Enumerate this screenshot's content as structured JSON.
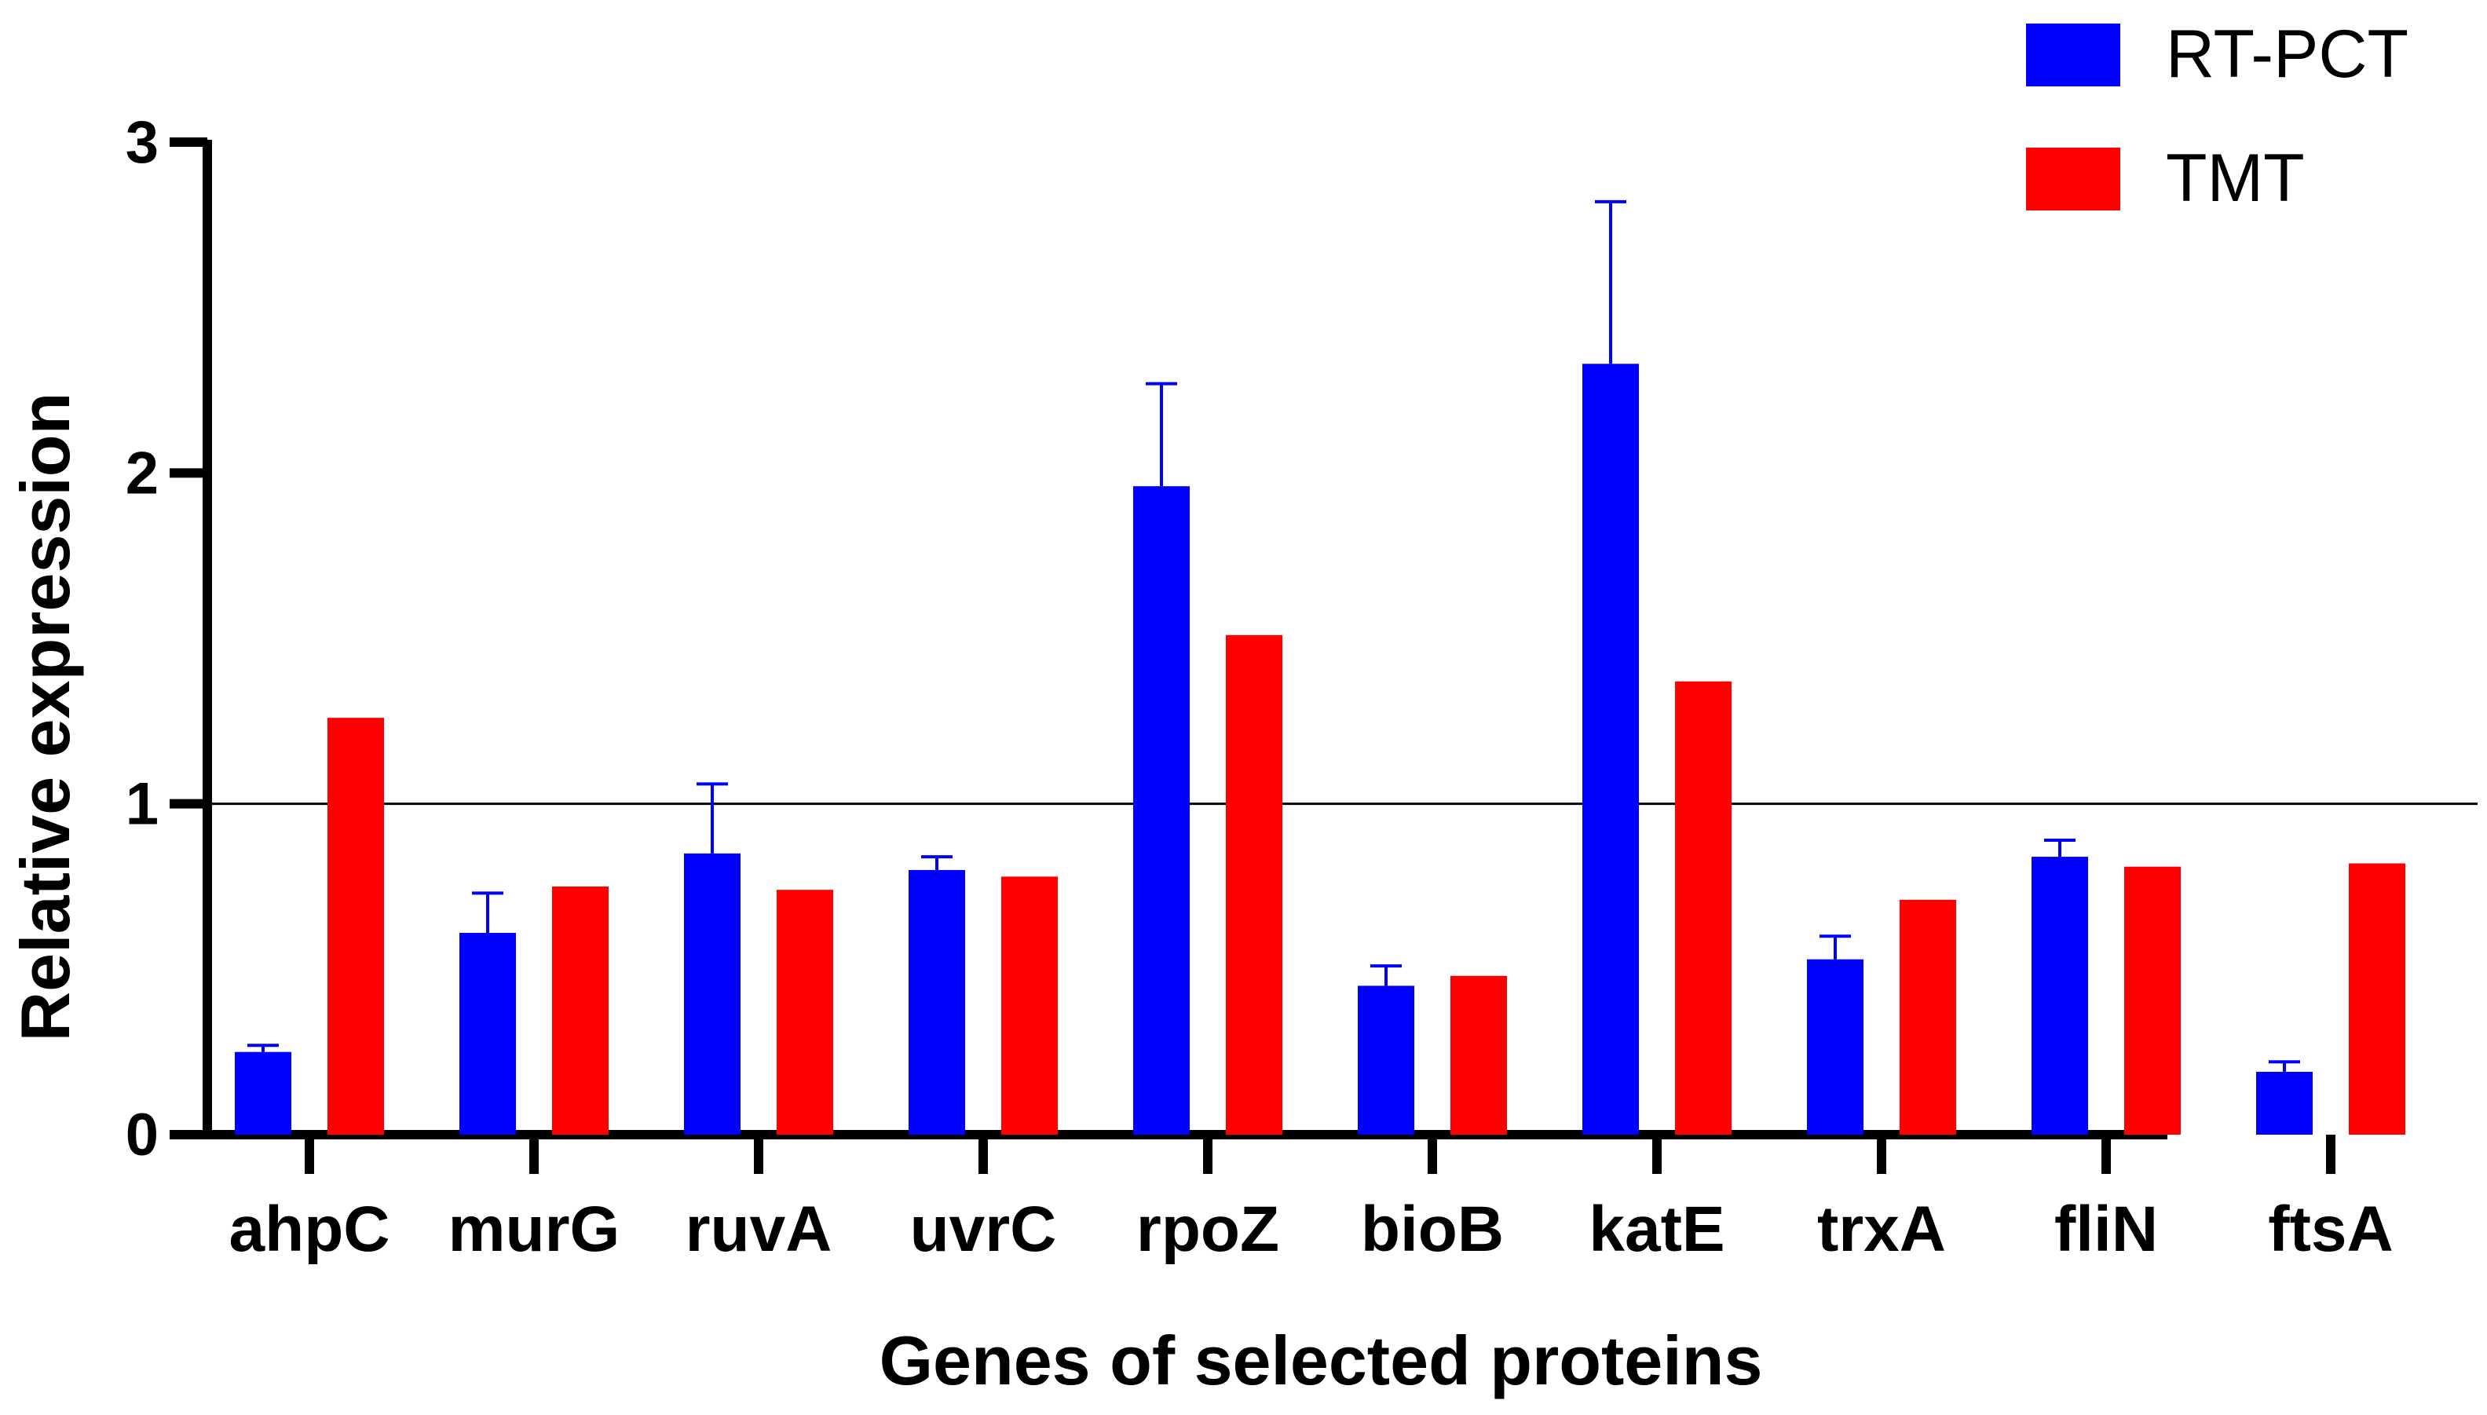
{
  "chart_data": {
    "type": "bar",
    "title": "",
    "xlabel": "Genes of selected proteins",
    "ylabel": "Relative expression",
    "ylim": [
      0,
      3
    ],
    "yticks": [
      0,
      1,
      2,
      3
    ],
    "reference_line": 1,
    "grid": false,
    "legend_position": "top-right",
    "categories": [
      "ahpC",
      "murG",
      "ruvA",
      "uvrC",
      "rpoZ",
      "bioB",
      "katE",
      "trxA",
      "fliN",
      "ftsA"
    ],
    "series": [
      {
        "name": "RT-PCT",
        "color": "#0000ff",
        "values": [
          0.25,
          0.61,
          0.85,
          0.8,
          1.96,
          0.45,
          2.33,
          0.53,
          0.84,
          0.19
        ],
        "errors": [
          0.02,
          0.12,
          0.21,
          0.04,
          0.31,
          0.06,
          0.49,
          0.07,
          0.05,
          0.03
        ]
      },
      {
        "name": "TMT",
        "color": "#ff0000",
        "values": [
          1.26,
          0.75,
          0.74,
          0.78,
          1.51,
          0.48,
          1.37,
          0.71,
          0.81,
          0.82
        ],
        "errors": [
          0,
          0,
          0,
          0,
          0,
          0,
          0,
          0,
          0,
          0
        ]
      }
    ]
  }
}
